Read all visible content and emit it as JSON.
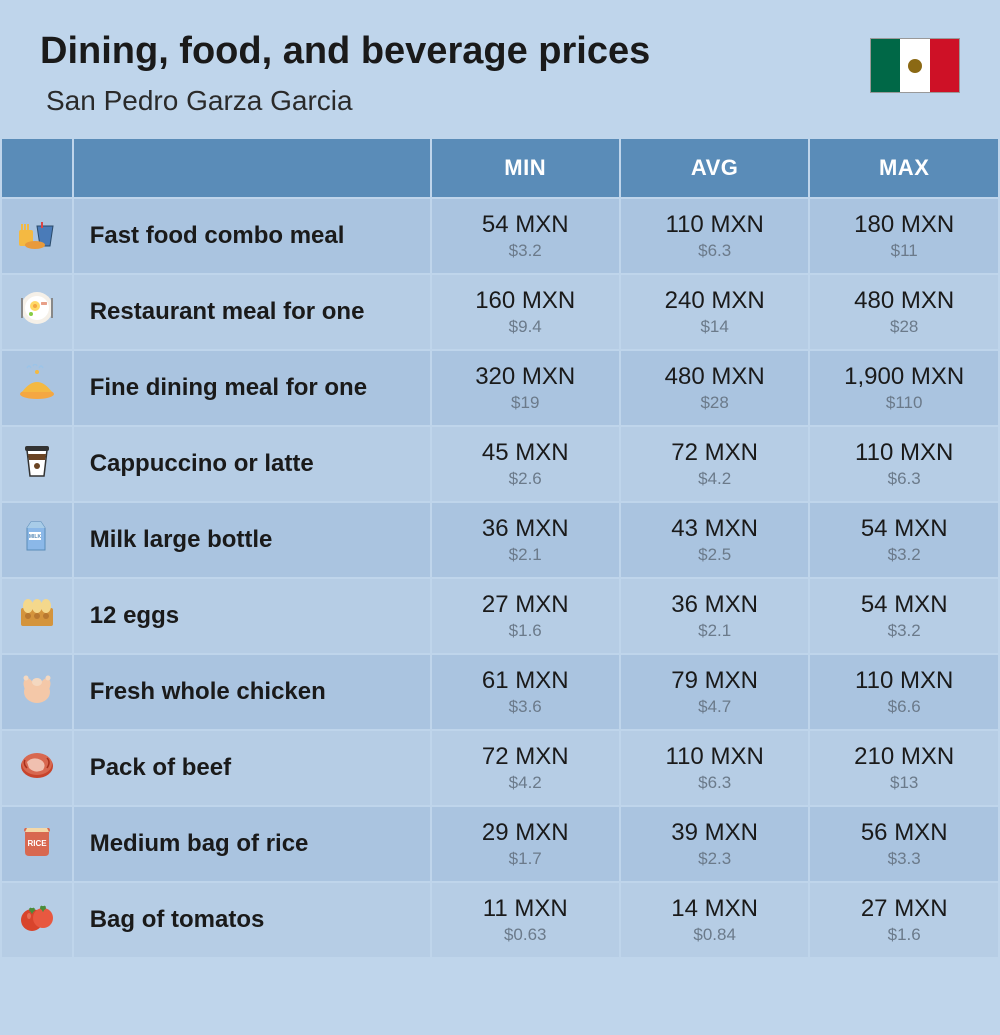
{
  "header": {
    "title": "Dining, food, and beverage prices",
    "subtitle": "San Pedro Garza Garcia"
  },
  "columns": [
    "MIN",
    "AVG",
    "MAX"
  ],
  "colors": {
    "page_bg": "#bfd5eb",
    "header_bg": "#5a8cb8",
    "header_text": "#ffffff",
    "row_odd": "#aac4e0",
    "row_even": "#b6cde5",
    "text_primary": "#1a1a1a",
    "text_secondary": "#6b7a8a",
    "flag_green": "#006847",
    "flag_white": "#ffffff",
    "flag_red": "#ce1126"
  },
  "typography": {
    "title_fontsize": 38,
    "title_weight": 800,
    "subtitle_fontsize": 28,
    "column_header_fontsize": 22,
    "label_fontsize": 24,
    "price_fontsize": 24,
    "usd_fontsize": 17
  },
  "rows": [
    {
      "icon": "fast-food-icon",
      "label": "Fast food combo meal",
      "min_mxn": "54 MXN",
      "min_usd": "$3.2",
      "avg_mxn": "110 MXN",
      "avg_usd": "$6.3",
      "max_mxn": "180 MXN",
      "max_usd": "$11"
    },
    {
      "icon": "restaurant-icon",
      "label": "Restaurant meal for one",
      "min_mxn": "160 MXN",
      "min_usd": "$9.4",
      "avg_mxn": "240 MXN",
      "avg_usd": "$14",
      "max_mxn": "480 MXN",
      "max_usd": "$28"
    },
    {
      "icon": "fine-dining-icon",
      "label": "Fine dining meal for one",
      "min_mxn": "320 MXN",
      "min_usd": "$19",
      "avg_mxn": "480 MXN",
      "avg_usd": "$28",
      "max_mxn": "1,900 MXN",
      "max_usd": "$110"
    },
    {
      "icon": "coffee-icon",
      "label": "Cappuccino or latte",
      "min_mxn": "45 MXN",
      "min_usd": "$2.6",
      "avg_mxn": "72 MXN",
      "avg_usd": "$4.2",
      "max_mxn": "110 MXN",
      "max_usd": "$6.3"
    },
    {
      "icon": "milk-icon",
      "label": "Milk large bottle",
      "min_mxn": "36 MXN",
      "min_usd": "$2.1",
      "avg_mxn": "43 MXN",
      "avg_usd": "$2.5",
      "max_mxn": "54 MXN",
      "max_usd": "$3.2"
    },
    {
      "icon": "eggs-icon",
      "label": "12 eggs",
      "min_mxn": "27 MXN",
      "min_usd": "$1.6",
      "avg_mxn": "36 MXN",
      "avg_usd": "$2.1",
      "max_mxn": "54 MXN",
      "max_usd": "$3.2"
    },
    {
      "icon": "chicken-icon",
      "label": "Fresh whole chicken",
      "min_mxn": "61 MXN",
      "min_usd": "$3.6",
      "avg_mxn": "79 MXN",
      "avg_usd": "$4.7",
      "max_mxn": "110 MXN",
      "max_usd": "$6.6"
    },
    {
      "icon": "beef-icon",
      "label": "Pack of beef",
      "min_mxn": "72 MXN",
      "min_usd": "$4.2",
      "avg_mxn": "110 MXN",
      "avg_usd": "$6.3",
      "max_mxn": "210 MXN",
      "max_usd": "$13"
    },
    {
      "icon": "rice-icon",
      "label": "Medium bag of rice",
      "min_mxn": "29 MXN",
      "min_usd": "$1.7",
      "avg_mxn": "39 MXN",
      "avg_usd": "$2.3",
      "max_mxn": "56 MXN",
      "max_usd": "$3.3"
    },
    {
      "icon": "tomato-icon",
      "label": "Bag of tomatos",
      "min_mxn": "11 MXN",
      "min_usd": "$0.63",
      "avg_mxn": "14 MXN",
      "avg_usd": "$0.84",
      "max_mxn": "27 MXN",
      "max_usd": "$1.6"
    }
  ]
}
